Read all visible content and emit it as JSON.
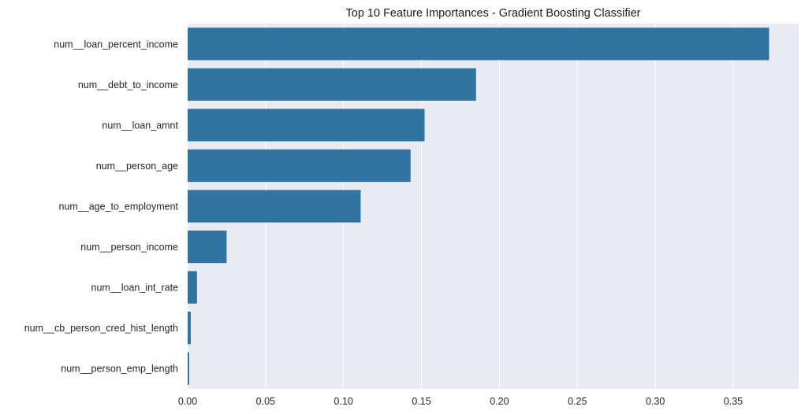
{
  "chart_data": {
    "type": "bar",
    "orientation": "horizontal",
    "title": "Top 10 Feature Importances - Gradient Boosting Classifier",
    "xlabel": "",
    "ylabel": "",
    "categories": [
      "num__loan_percent_income",
      "num__debt_to_income",
      "num__loan_amnt",
      "num__person_age",
      "num__age_to_employment",
      "num__person_income",
      "num__loan_int_rate",
      "num__cb_person_cred_hist_length",
      "num__person_emp_length"
    ],
    "values": [
      0.373,
      0.185,
      0.152,
      0.143,
      0.111,
      0.025,
      0.006,
      0.002,
      0.001
    ],
    "xlim": [
      0,
      0.392
    ],
    "xticks": [
      0.0,
      0.05,
      0.1,
      0.15,
      0.2,
      0.25,
      0.3,
      0.35
    ],
    "xtick_labels": [
      "0.00",
      "0.05",
      "0.10",
      "0.15",
      "0.20",
      "0.25",
      "0.30",
      "0.35"
    ],
    "grid": "vertical",
    "colors": {
      "bar": "#3274a1",
      "background": "#eaeaf2",
      "grid": "#ffffff"
    }
  }
}
